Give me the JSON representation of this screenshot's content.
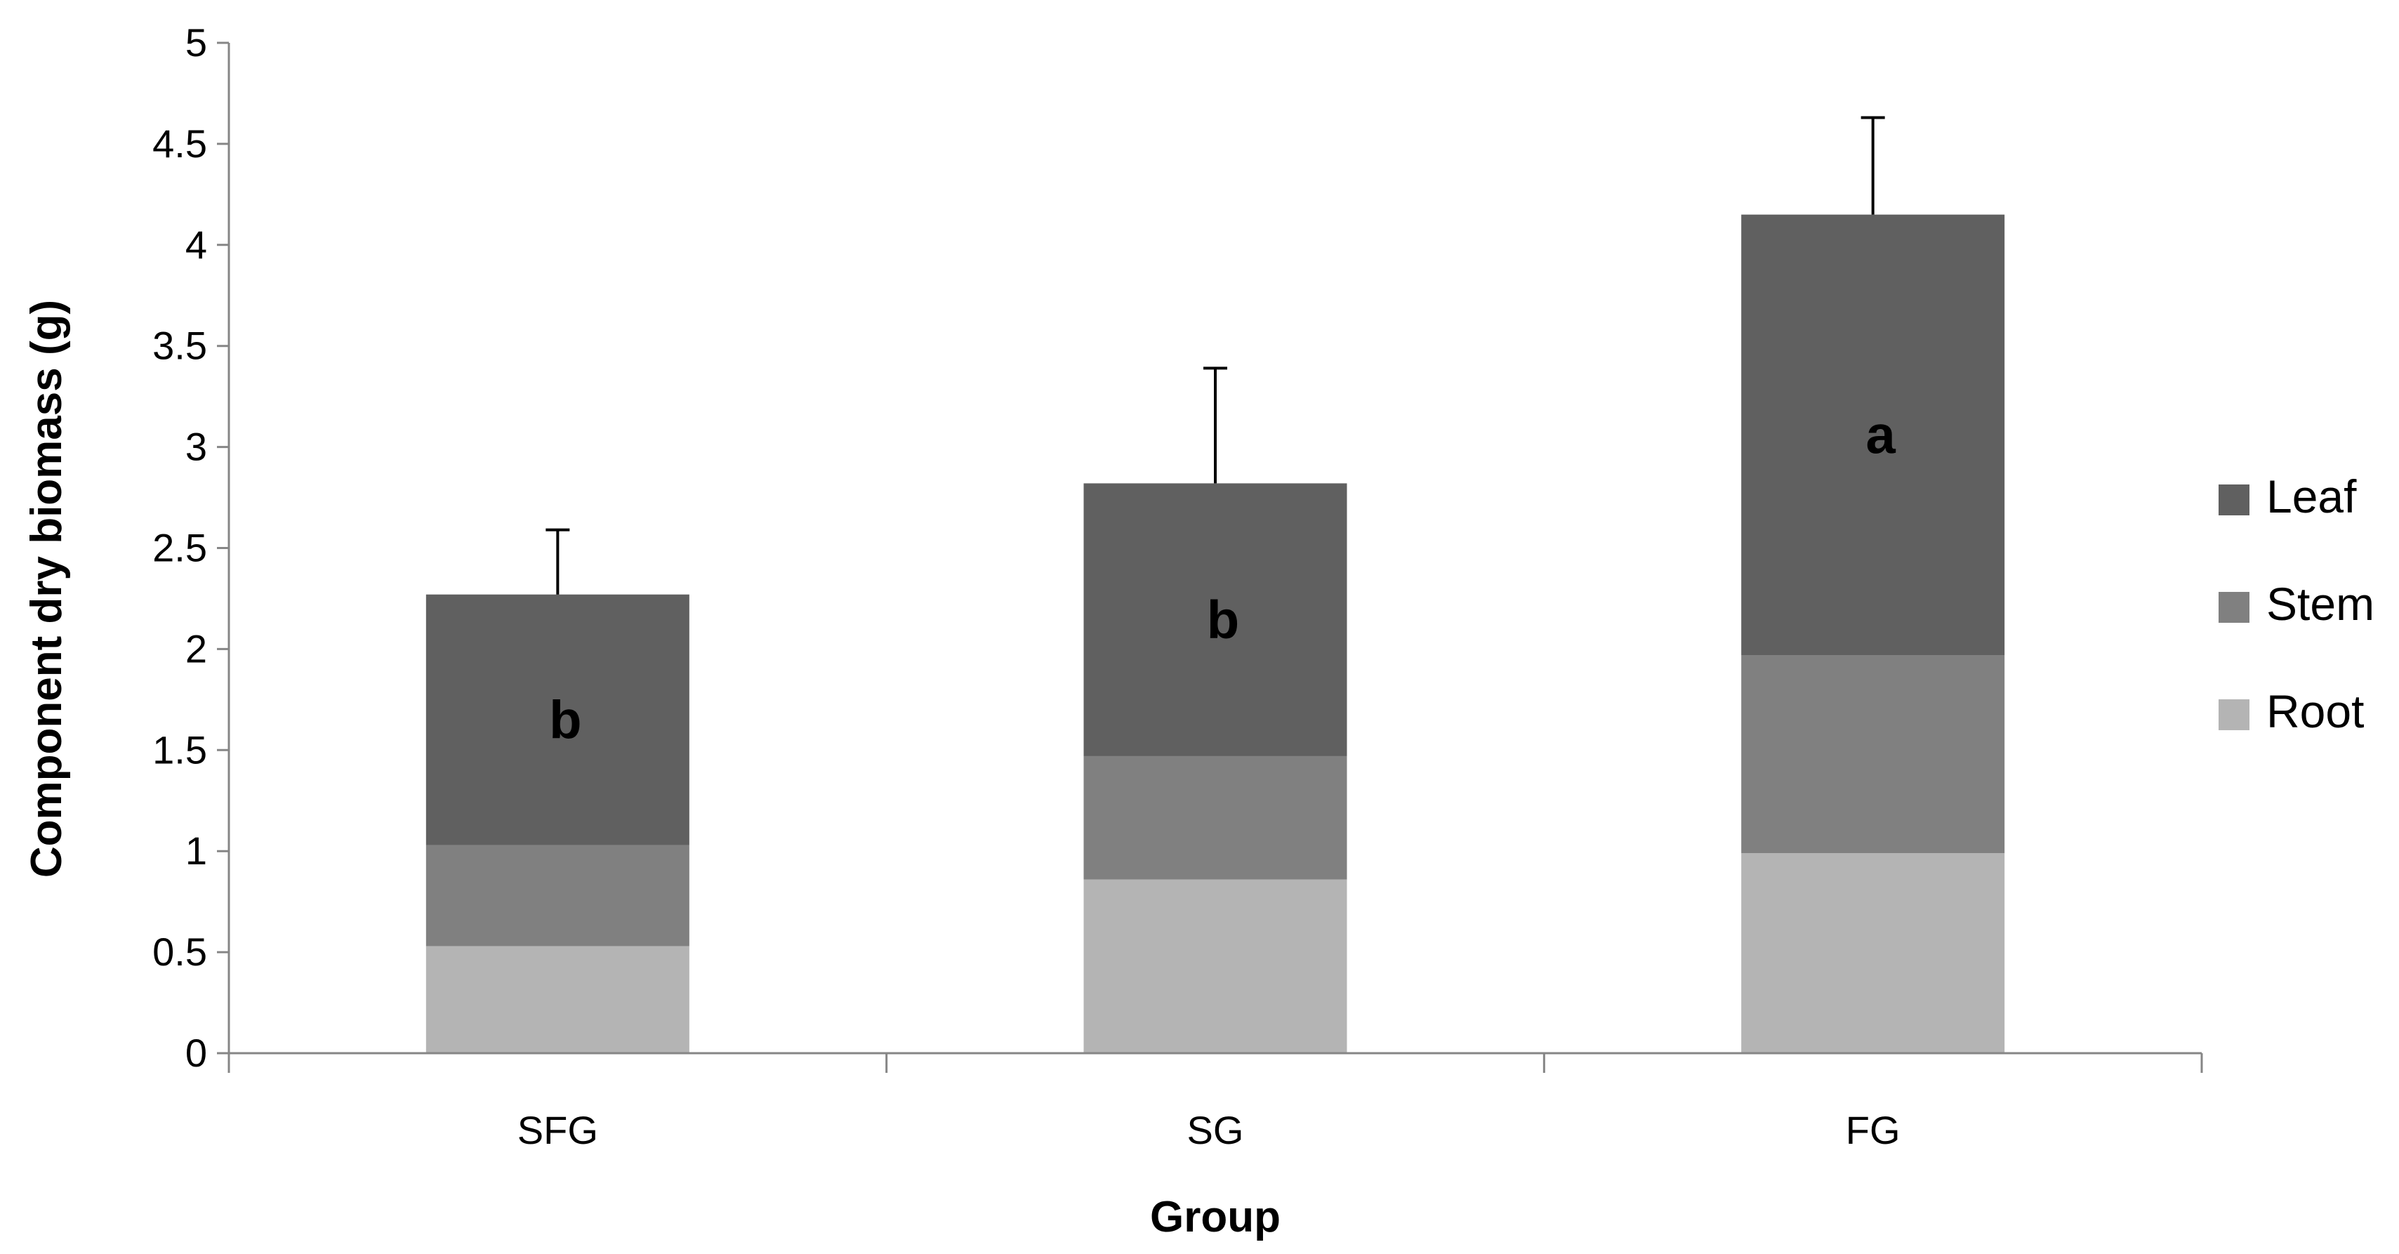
{
  "chart_data": {
    "type": "bar",
    "stacked": true,
    "categories": [
      "SFG",
      "SG",
      "FG"
    ],
    "series": [
      {
        "name": "Root",
        "color": "#b4b4b4",
        "values": [
          0.53,
          0.86,
          0.99
        ]
      },
      {
        "name": "Stem",
        "color": "#808080",
        "values": [
          0.5,
          0.61,
          0.98
        ]
      },
      {
        "name": "Leaf",
        "color": "#606060",
        "values": [
          1.24,
          1.35,
          2.18
        ]
      }
    ],
    "totals": [
      2.27,
      2.82,
      4.15
    ],
    "error_upper": [
      2.59,
      3.39,
      4.63
    ],
    "significance_letters": [
      "b",
      "b",
      "a"
    ],
    "xlabel": "Group",
    "ylabel": "Component dry  biomass (g)",
    "ylim": [
      0,
      5
    ],
    "yticks": [
      "0",
      "0.5",
      "1",
      "1.5",
      "2",
      "2.5",
      "3",
      "3.5",
      "4",
      "4.5",
      "5"
    ],
    "ytick_values": [
      0,
      0.5,
      1,
      1.5,
      2,
      2.5,
      3,
      3.5,
      4,
      4.5,
      5
    ],
    "legend_order": [
      "Leaf",
      "Stem",
      "Root"
    ],
    "legend_position": "right",
    "grid": false
  }
}
